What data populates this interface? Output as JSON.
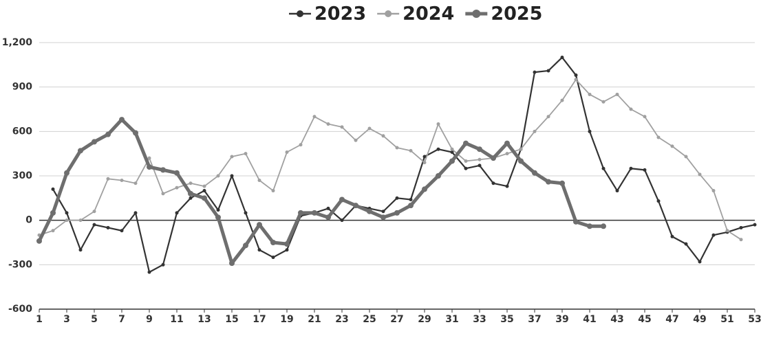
{
  "chart_data": {
    "type": "line",
    "x": [
      1,
      2,
      3,
      4,
      5,
      6,
      7,
      8,
      9,
      10,
      11,
      12,
      13,
      14,
      15,
      16,
      17,
      18,
      19,
      20,
      21,
      22,
      23,
      24,
      25,
      26,
      27,
      28,
      29,
      30,
      31,
      32,
      33,
      34,
      35,
      36,
      37,
      38,
      39,
      40,
      41,
      42,
      43,
      44,
      45,
      46,
      47,
      48,
      49,
      50,
      51,
      52,
      53
    ],
    "xlim": [
      1,
      53
    ],
    "xticks": [
      1,
      3,
      5,
      7,
      9,
      11,
      13,
      15,
      17,
      19,
      21,
      23,
      25,
      27,
      29,
      31,
      33,
      35,
      37,
      39,
      41,
      43,
      45,
      47,
      49,
      51,
      53
    ],
    "ylim": [
      -600,
      1200
    ],
    "yticks": [
      -600,
      -300,
      0,
      300,
      600,
      900,
      {
        "value": 1200,
        "label": "1,200"
      }
    ],
    "grid": true,
    "series": [
      {
        "name": "2023",
        "color": "#333333",
        "values": [
          null,
          210,
          50,
          -200,
          -30,
          -50,
          -70,
          50,
          -350,
          -300,
          50,
          150,
          200,
          70,
          300,
          50,
          -200,
          -250,
          -200,
          30,
          50,
          80,
          0,
          100,
          80,
          60,
          150,
          140,
          430,
          480,
          460,
          350,
          370,
          250,
          230,
          480,
          1000,
          1010,
          1100,
          980,
          600,
          350,
          200,
          350,
          340,
          130,
          -110,
          -160,
          -280,
          -100,
          -80,
          -50,
          -30
        ]
      },
      {
        "name": "2024",
        "color": "#a0a0a0",
        "values": [
          -100,
          -70,
          0,
          0,
          60,
          280,
          270,
          250,
          420,
          180,
          220,
          250,
          230,
          300,
          430,
          450,
          270,
          200,
          460,
          510,
          700,
          650,
          630,
          540,
          620,
          570,
          490,
          470,
          390,
          650,
          480,
          400,
          410,
          420,
          450,
          480,
          600,
          700,
          810,
          950,
          850,
          800,
          850,
          750,
          700,
          560,
          500,
          430,
          310,
          200,
          -70,
          -130,
          null
        ]
      },
      {
        "name": "2025",
        "color": "#6e6e6e",
        "values": [
          -140,
          50,
          320,
          470,
          530,
          580,
          680,
          590,
          360,
          340,
          320,
          180,
          150,
          20,
          -290,
          -170,
          -30,
          -150,
          -160,
          50,
          50,
          20,
          140,
          100,
          60,
          20,
          50,
          100,
          210,
          300,
          400,
          520,
          480,
          420,
          520,
          400,
          320,
          260,
          250,
          -10,
          -40,
          -40,
          null,
          null,
          null,
          null,
          null,
          null,
          null,
          null,
          null,
          null,
          null
        ]
      }
    ]
  }
}
